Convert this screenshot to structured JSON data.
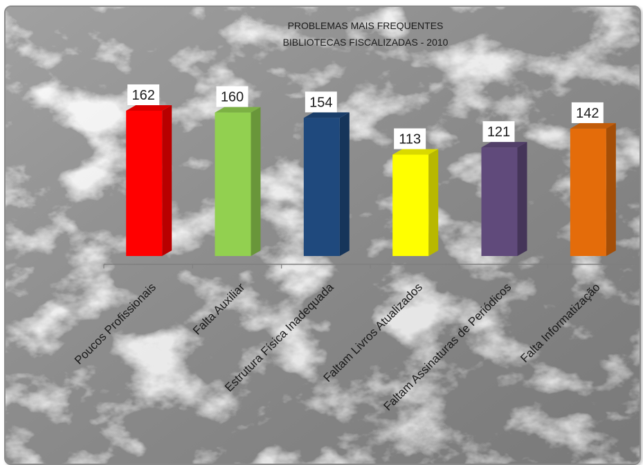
{
  "chart_data": {
    "type": "bar",
    "title": "PROBLEMAS MAIS FREQUENTES",
    "subtitle": "BIBLIOTECAS FISCALIZADAS - 2010",
    "categories": [
      "Poucos Profissionais",
      "Falta Auxiliar",
      "Estrutura Física Inadequada",
      "Faltam Livros Atualizados",
      "Faltam Assinaturas de Periódicos",
      "Falta Informatização"
    ],
    "values": [
      162,
      160,
      154,
      113,
      121,
      142
    ],
    "colors": [
      "#ff0000",
      "#92d050",
      "#1f497d",
      "#ffff00",
      "#604a7b",
      "#e46c0a"
    ],
    "xlabel": "",
    "ylabel": "",
    "ylim": [
      0,
      162
    ],
    "grid": false,
    "legend": "none",
    "background": "marble"
  }
}
